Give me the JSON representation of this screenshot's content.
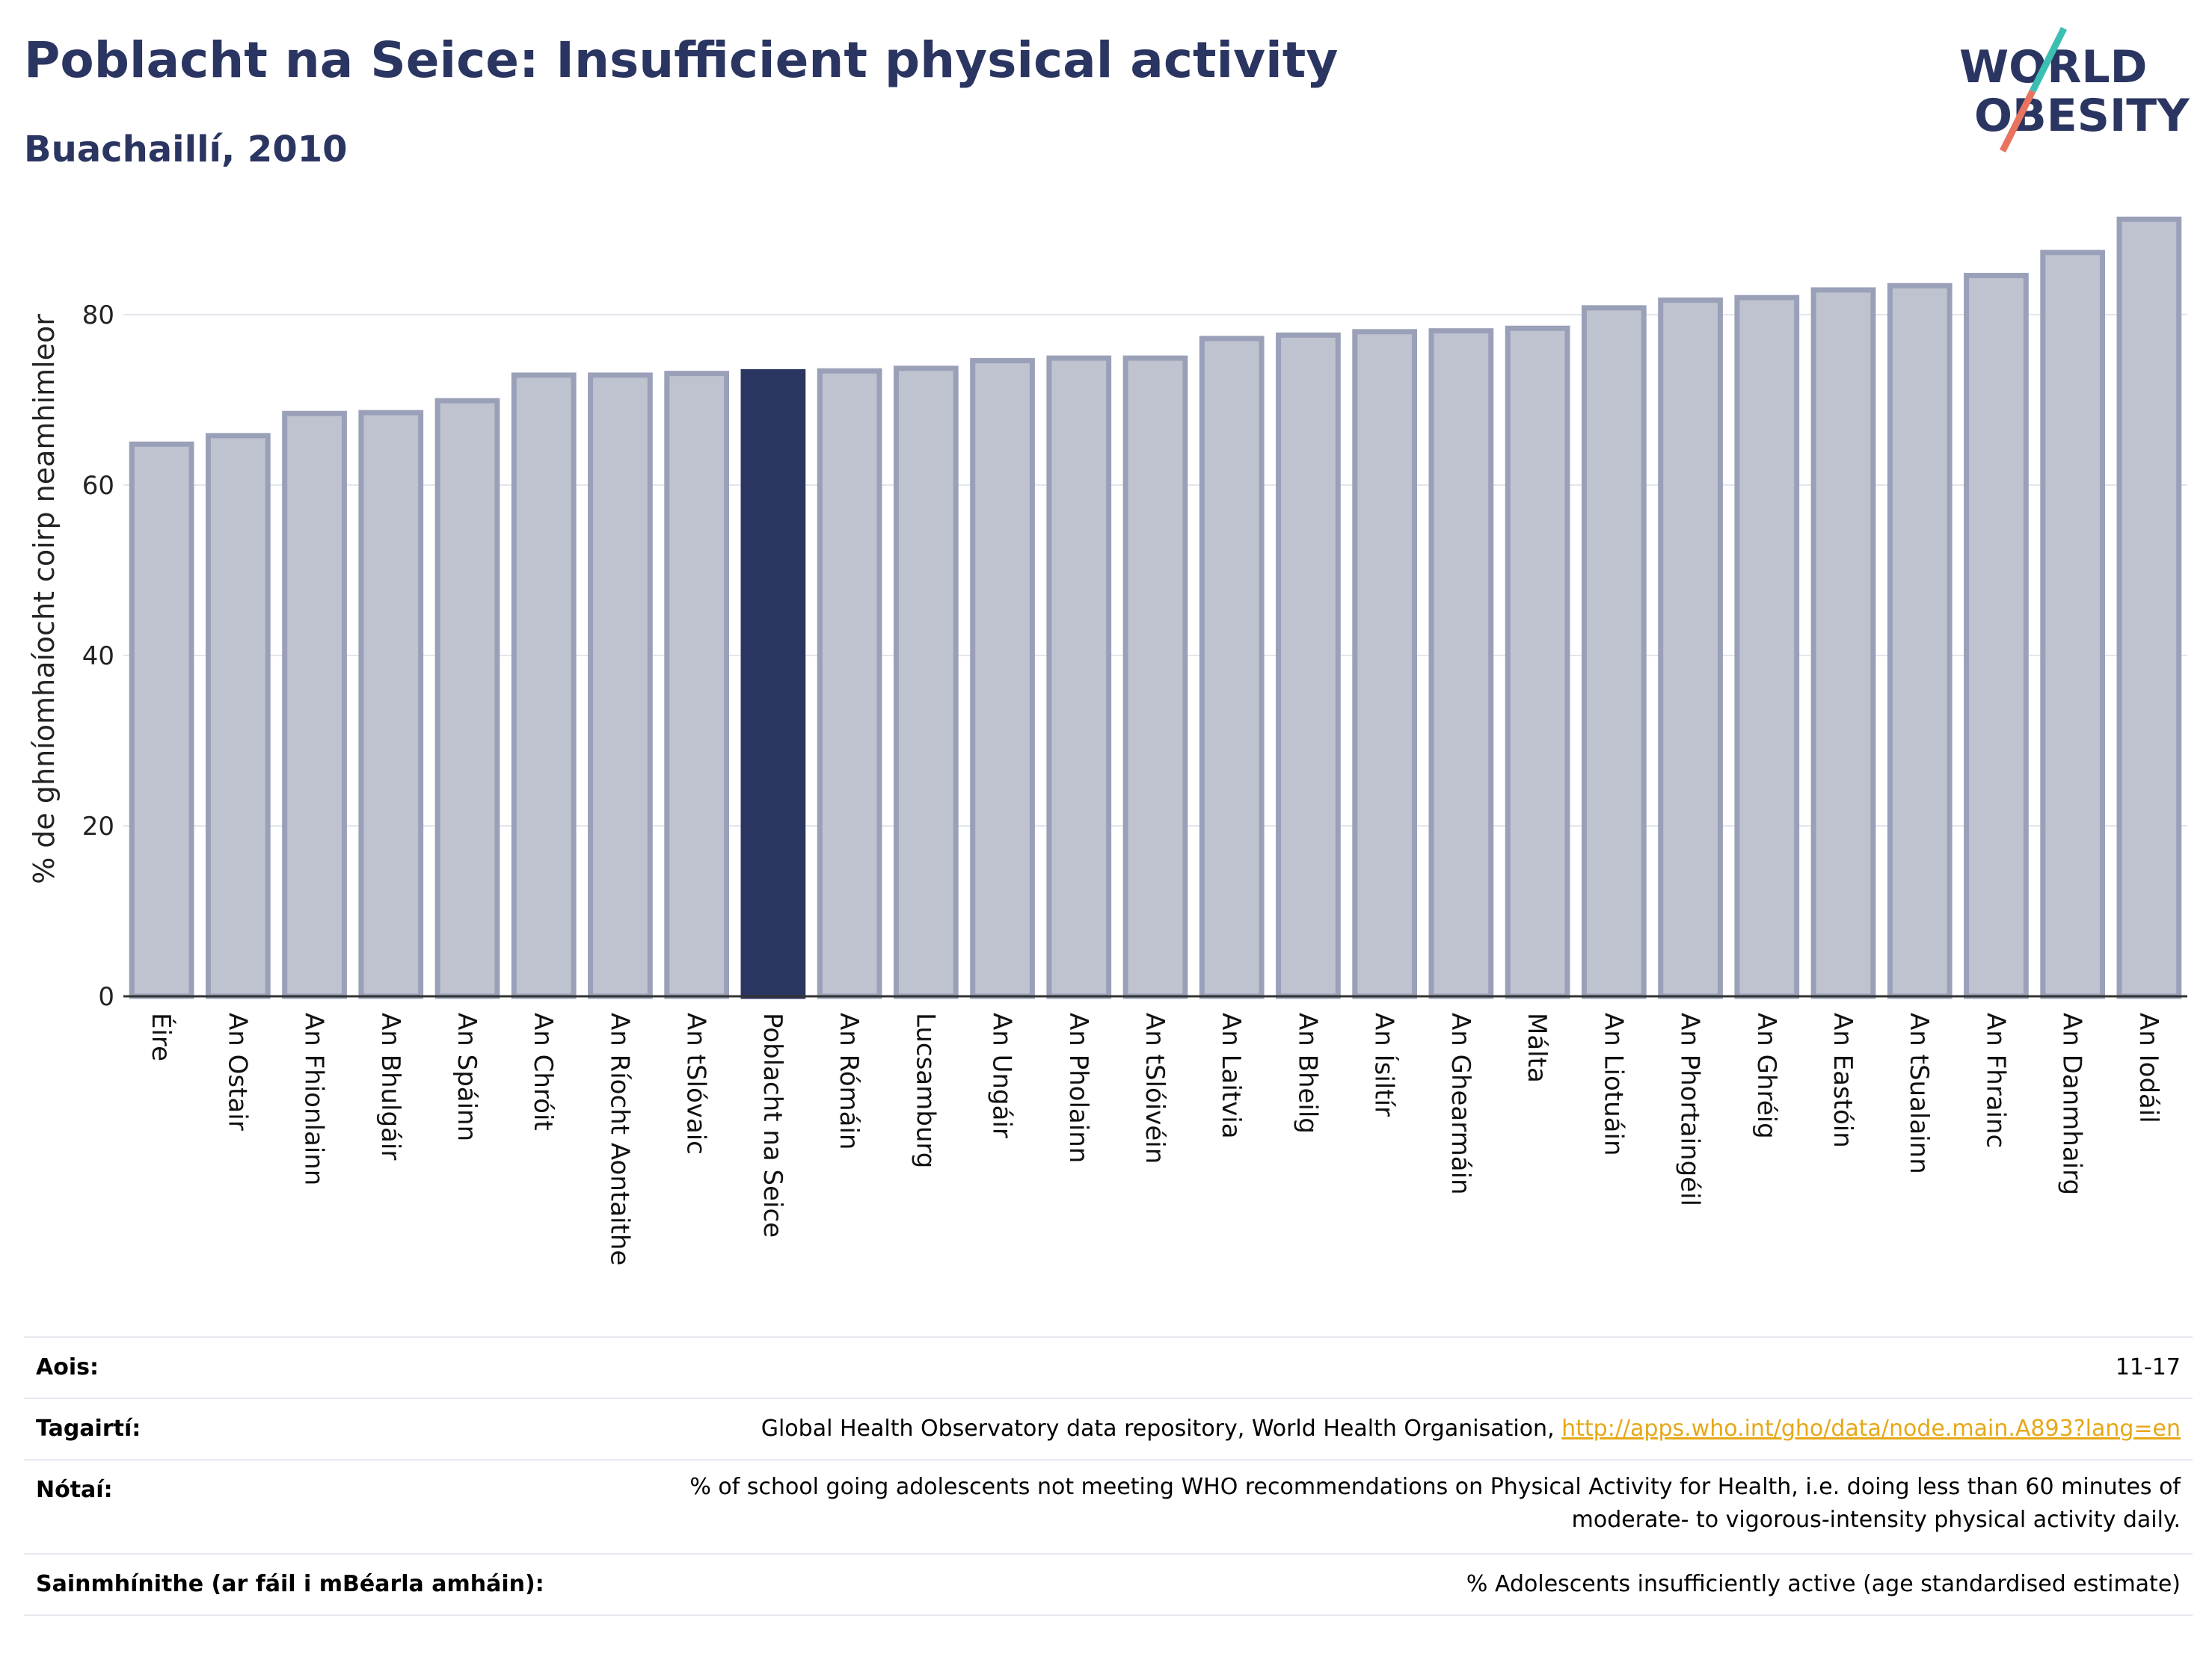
{
  "header": {
    "title": "Poblacht na Seice: Insufficient physical activity",
    "subtitle": "Buachaillí, 2010"
  },
  "logo": {
    "line1": "WORLD",
    "line2": "OBESITY"
  },
  "chart_data": {
    "type": "bar",
    "title": "Poblacht na Seice: Insufficient physical activity",
    "subtitle": "Buachaillí, 2010",
    "xlabel": "",
    "ylabel": "% de ghníomhaíocht coirp neamhimleor",
    "ylim": [
      0,
      95
    ],
    "yticks": [
      0,
      20,
      40,
      60,
      80
    ],
    "grid": true,
    "highlight": "Poblacht na Seice",
    "colors": {
      "bar": "#bfc3d0",
      "bar_edge": "#9aa0b8",
      "highlight": "#2b3561",
      "grid": "#e4e6ee"
    },
    "categories": [
      "Éire",
      "An Ostair",
      "An Fhionlainn",
      "An Bhulgáir",
      "An Spáinn",
      "An Chróit",
      "An Ríocht Aontaithe",
      "An tSlóvaic",
      "Poblacht na Seice",
      "An Rómáin",
      "Lucsamburg",
      "An Ungáir",
      "An Pholainn",
      "An tSlóivéin",
      "An Laitvia",
      "An Bheilg",
      "An Ísiltír",
      "An Ghearmáin",
      "Málta",
      "An Liotuáin",
      "An Phortaingéil",
      "An Ghréig",
      "An Eastóin",
      "An tSualainn",
      "An Fhrainc",
      "An Danmhairg",
      "An Iodáil"
    ],
    "values": [
      64.8,
      65.8,
      68.4,
      68.5,
      69.9,
      72.9,
      72.9,
      73.1,
      73.3,
      73.4,
      73.7,
      74.6,
      74.9,
      74.9,
      77.2,
      77.6,
      78.0,
      78.1,
      78.4,
      80.8,
      81.7,
      82.0,
      82.9,
      83.4,
      84.6,
      87.3,
      91.2
    ]
  },
  "meta": {
    "rows": [
      {
        "label": "Aois:",
        "value": "11-17"
      },
      {
        "label": "Tagairtí:",
        "value": "Global Health Observatory data repository, World Health Organisation, ",
        "link": "http://apps.who.int/gho/data/node.main.A893?lang=en"
      },
      {
        "label": "Nótaí:",
        "value_line1": "% of school going adolescents not meeting WHO recommendations on Physical Activity for Health, i.e. doing less than 60 minutes of",
        "value_line2": "moderate- to vigorous-intensity physical activity daily."
      },
      {
        "label": "Sainmhínithe (ar fáil i mBéarla amháin):",
        "value": "% Adolescents insufficiently active (age standardised estimate)"
      }
    ]
  }
}
